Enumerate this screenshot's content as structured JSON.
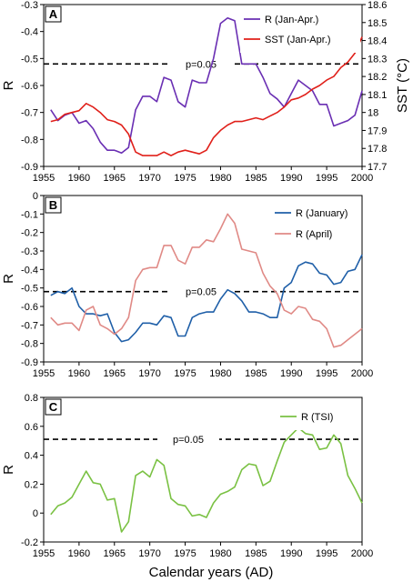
{
  "chart_data": [
    {
      "type": "line",
      "panel_label": "A",
      "ylabel": "R",
      "y2label": "SST (°C)",
      "xlim": [
        1955,
        2000
      ],
      "ylim": [
        -0.9,
        -0.3
      ],
      "y2lim": [
        17.7,
        18.6
      ],
      "xticks": [
        "1955",
        "1960",
        "1965",
        "1970",
        "1975",
        "1980",
        "1985",
        "1990",
        "1995",
        "2000"
      ],
      "yticks": [
        "-0.9",
        "-0.8",
        "-0.7",
        "-0.6",
        "-0.5",
        "-0.4",
        "-0.3"
      ],
      "y2ticks": [
        "17.7",
        "17.8",
        "17.9",
        "18",
        "18.1",
        "18.2",
        "18.3",
        "18.4",
        "18.5",
        "18.6"
      ],
      "threshold": {
        "value": -0.52,
        "label": "p=0.05"
      },
      "legend_position": "top-right",
      "series": [
        {
          "name": "R (Jan-Apr.)",
          "color": "#6a2fb3",
          "axis": "left",
          "x": [
            1956,
            1957,
            1958,
            1959,
            1960,
            1961,
            1962,
            1963,
            1964,
            1965,
            1966,
            1967,
            1968,
            1969,
            1970,
            1971,
            1972,
            1973,
            1974,
            1975,
            1976,
            1977,
            1978,
            1979,
            1980,
            1981,
            1982,
            1983,
            1984,
            1985,
            1986,
            1987,
            1988,
            1989,
            1990,
            1991,
            1992,
            1993,
            1994,
            1995,
            1996,
            1997,
            1998,
            1999,
            2000
          ],
          "values": [
            -0.69,
            -0.73,
            -0.71,
            -0.7,
            -0.74,
            -0.73,
            -0.76,
            -0.81,
            -0.84,
            -0.84,
            -0.85,
            -0.83,
            -0.69,
            -0.64,
            -0.64,
            -0.66,
            -0.57,
            -0.58,
            -0.66,
            -0.68,
            -0.58,
            -0.59,
            -0.59,
            -0.5,
            -0.37,
            -0.35,
            -0.36,
            -0.52,
            -0.52,
            -0.52,
            -0.57,
            -0.63,
            -0.65,
            -0.68,
            -0.63,
            -0.58,
            -0.6,
            -0.62,
            -0.67,
            -0.67,
            -0.75,
            -0.74,
            -0.73,
            -0.71,
            -0.62
          ]
        },
        {
          "name": "SST (Jan-Apr.)",
          "color": "#e0201a",
          "axis": "right",
          "x": [
            1956,
            1957,
            1958,
            1959,
            1960,
            1961,
            1962,
            1963,
            1964,
            1965,
            1966,
            1967,
            1968,
            1969,
            1970,
            1971,
            1972,
            1973,
            1974,
            1975,
            1976,
            1977,
            1978,
            1979,
            1980,
            1981,
            1982,
            1983,
            1984,
            1985,
            1986,
            1987,
            1988,
            1989,
            1990,
            1991,
            1992,
            1993,
            1994,
            1995,
            1996,
            1997,
            1998,
            1999,
            2000
          ],
          "values": [
            17.95,
            17.96,
            17.99,
            18.0,
            18.01,
            18.05,
            18.03,
            18.0,
            17.96,
            17.95,
            17.93,
            17.88,
            17.78,
            17.76,
            17.76,
            17.76,
            17.78,
            17.76,
            17.78,
            17.79,
            17.78,
            17.77,
            17.79,
            17.86,
            17.9,
            17.93,
            17.95,
            17.95,
            17.96,
            17.97,
            17.96,
            17.98,
            18.0,
            18.03,
            18.07,
            18.08,
            18.1,
            18.13,
            18.15,
            18.18,
            18.2,
            18.25,
            18.28,
            18.33,
            18.42
          ]
        }
      ]
    },
    {
      "type": "line",
      "panel_label": "B",
      "ylabel": "R",
      "xlim": [
        1955,
        2000
      ],
      "ylim": [
        -0.9,
        0
      ],
      "xticks": [
        "1955",
        "1960",
        "1965",
        "1970",
        "1975",
        "1980",
        "1985",
        "1990",
        "1995",
        "2000"
      ],
      "yticks": [
        "-0.9",
        "-0.8",
        "-0.7",
        "-0.6",
        "-0.5",
        "-0.4",
        "-0.3",
        "-0.2",
        "-0.1",
        "0"
      ],
      "threshold": {
        "value": -0.52,
        "label": "p=0.05"
      },
      "legend_position": "top-right",
      "series": [
        {
          "name": "R (January)",
          "color": "#1f5fa8",
          "x": [
            1956,
            1957,
            1958,
            1959,
            1960,
            1961,
            1962,
            1963,
            1964,
            1965,
            1966,
            1967,
            1968,
            1969,
            1970,
            1971,
            1972,
            1973,
            1974,
            1975,
            1976,
            1977,
            1978,
            1979,
            1980,
            1981,
            1982,
            1983,
            1984,
            1985,
            1986,
            1987,
            1988,
            1989,
            1990,
            1991,
            1992,
            1993,
            1994,
            1995,
            1996,
            1997,
            1998,
            1999,
            2000
          ],
          "values": [
            -0.54,
            -0.52,
            -0.53,
            -0.5,
            -0.6,
            -0.64,
            -0.64,
            -0.65,
            -0.64,
            -0.74,
            -0.79,
            -0.78,
            -0.74,
            -0.69,
            -0.69,
            -0.7,
            -0.65,
            -0.66,
            -0.76,
            -0.76,
            -0.66,
            -0.64,
            -0.63,
            -0.63,
            -0.56,
            -0.51,
            -0.53,
            -0.57,
            -0.63,
            -0.63,
            -0.64,
            -0.66,
            -0.66,
            -0.5,
            -0.47,
            -0.38,
            -0.36,
            -0.37,
            -0.42,
            -0.43,
            -0.48,
            -0.47,
            -0.41,
            -0.4,
            -0.32
          ]
        },
        {
          "name": "R (April)",
          "color": "#e08a86",
          "x": [
            1956,
            1957,
            1958,
            1959,
            1960,
            1961,
            1962,
            1963,
            1964,
            1965,
            1966,
            1967,
            1968,
            1969,
            1970,
            1971,
            1972,
            1973,
            1974,
            1975,
            1976,
            1977,
            1978,
            1979,
            1980,
            1981,
            1982,
            1983,
            1984,
            1985,
            1986,
            1987,
            1988,
            1989,
            1990,
            1991,
            1992,
            1993,
            1994,
            1995,
            1996,
            1997,
            1998,
            1999,
            2000
          ],
          "values": [
            -0.66,
            -0.7,
            -0.69,
            -0.69,
            -0.73,
            -0.62,
            -0.6,
            -0.7,
            -0.72,
            -0.75,
            -0.72,
            -0.66,
            -0.46,
            -0.4,
            -0.39,
            -0.39,
            -0.27,
            -0.27,
            -0.35,
            -0.37,
            -0.28,
            -0.28,
            -0.24,
            -0.25,
            -0.18,
            -0.1,
            -0.15,
            -0.29,
            -0.3,
            -0.31,
            -0.42,
            -0.49,
            -0.53,
            -0.62,
            -0.64,
            -0.6,
            -0.61,
            -0.67,
            -0.68,
            -0.72,
            -0.82,
            -0.81,
            -0.78,
            -0.75,
            -0.72
          ]
        }
      ]
    },
    {
      "type": "line",
      "panel_label": "C",
      "ylabel": "R",
      "xlabel": "Calendar years (AD)",
      "xlim": [
        1955,
        2000
      ],
      "ylim": [
        -0.2,
        0.8
      ],
      "xticks": [
        "1955",
        "1960",
        "1965",
        "1970",
        "1975",
        "1980",
        "1985",
        "1990",
        "1995",
        "2000"
      ],
      "yticks": [
        "-0.2",
        "0",
        "0.2",
        "0.4",
        "0.6",
        "0.8"
      ],
      "threshold": {
        "value": 0.51,
        "label": "p=0.05"
      },
      "legend_position": "top-right",
      "series": [
        {
          "name": "R (TSI)",
          "color": "#7ac143",
          "x": [
            1956,
            1957,
            1958,
            1959,
            1960,
            1961,
            1962,
            1963,
            1964,
            1965,
            1966,
            1967,
            1968,
            1969,
            1970,
            1971,
            1972,
            1973,
            1974,
            1975,
            1976,
            1977,
            1978,
            1979,
            1980,
            1981,
            1982,
            1983,
            1984,
            1985,
            1986,
            1987,
            1988,
            1989,
            1990,
            1991,
            1992,
            1993,
            1994,
            1995,
            1996,
            1997,
            1998,
            1999,
            2000
          ],
          "values": [
            -0.01,
            0.05,
            0.07,
            0.11,
            0.2,
            0.29,
            0.21,
            0.2,
            0.09,
            0.1,
            -0.13,
            -0.06,
            0.26,
            0.29,
            0.25,
            0.37,
            0.33,
            0.1,
            0.06,
            0.05,
            -0.02,
            -0.01,
            -0.03,
            0.07,
            0.13,
            0.15,
            0.18,
            0.3,
            0.34,
            0.33,
            0.19,
            0.22,
            0.36,
            0.49,
            0.54,
            0.59,
            0.55,
            0.54,
            0.44,
            0.45,
            0.54,
            0.48,
            0.26,
            0.17,
            0.07
          ]
        }
      ]
    }
  ]
}
